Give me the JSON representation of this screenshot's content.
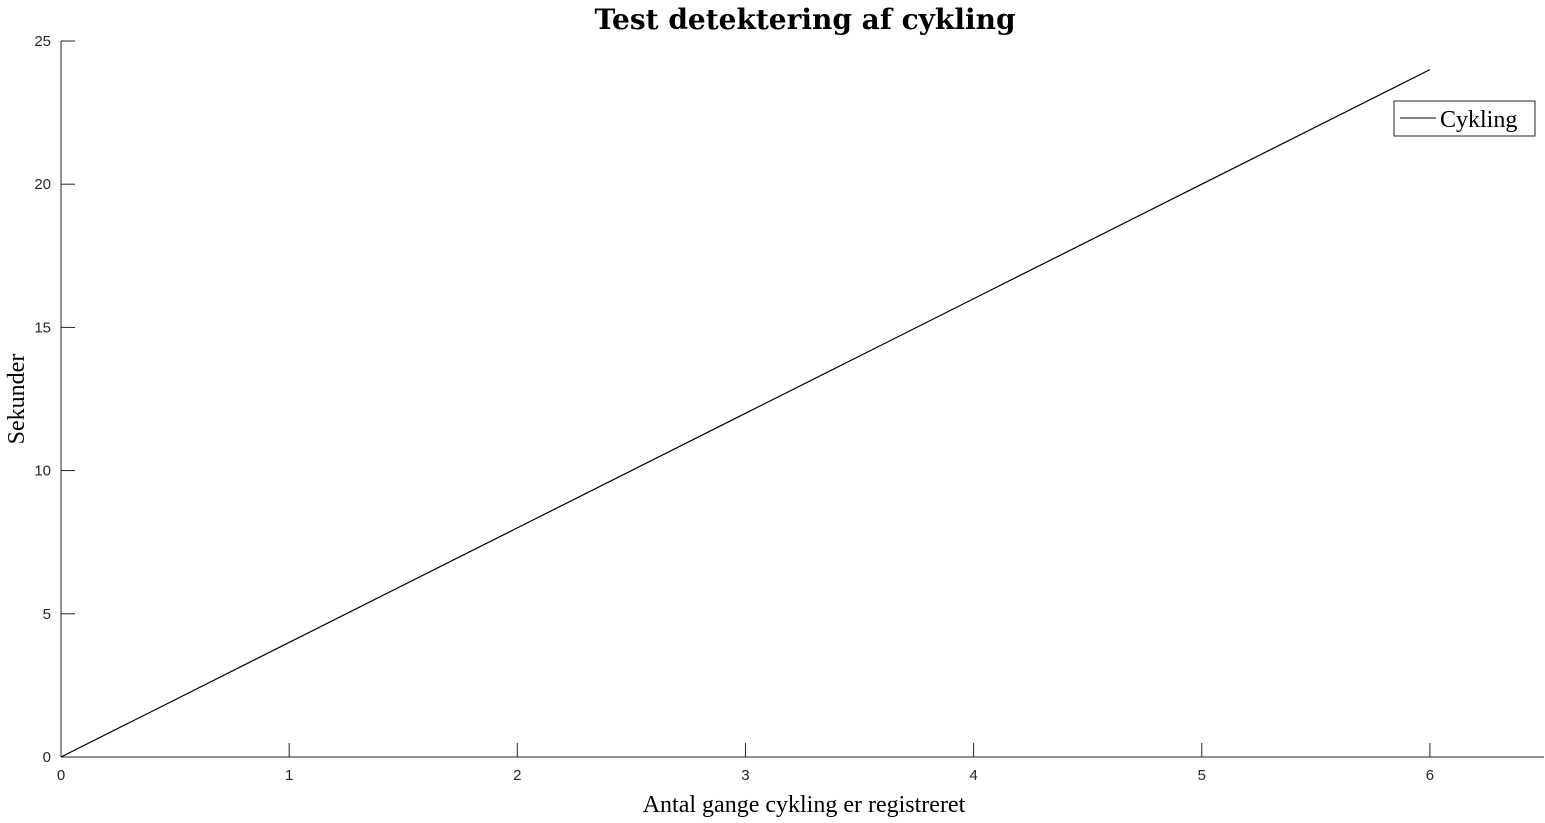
{
  "chart_data": {
    "type": "line",
    "title": "Test detektering af cykling",
    "xlabel": "Antal gange cykling er registreret",
    "ylabel": "Sekunder",
    "xlim": [
      0,
      6.5
    ],
    "ylim": [
      0,
      25
    ],
    "xticks": [
      0,
      1,
      2,
      3,
      4,
      5,
      6
    ],
    "yticks": [
      0,
      5,
      10,
      15,
      20,
      25
    ],
    "grid": false,
    "legend_position": "top-right",
    "series": [
      {
        "name": "Cykling",
        "color": "#000000",
        "x": [
          0,
          1,
          2,
          3,
          4,
          5,
          6
        ],
        "y": [
          0,
          4,
          8,
          12,
          16,
          20,
          24
        ]
      }
    ]
  }
}
